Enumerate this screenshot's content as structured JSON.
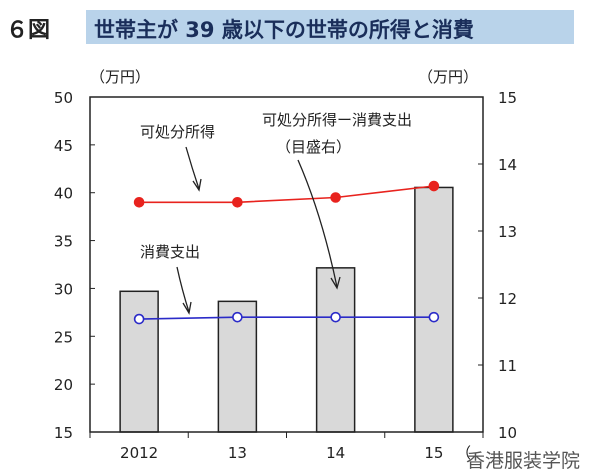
{
  "figure": {
    "number": "６図",
    "title": "世帯主が 39 歳以下の世帯の所得と消費",
    "watermark": "香港服装学院"
  },
  "chart_data": {
    "type": "bar",
    "categories": [
      "2012",
      "13",
      "14",
      "15"
    ],
    "y_left": {
      "unit": "（万円）",
      "ylim": [
        15,
        50
      ],
      "ticks": [
        15,
        20,
        25,
        30,
        35,
        40,
        45,
        50
      ]
    },
    "y_right": {
      "unit": "（万円）",
      "ylim": [
        10,
        15
      ],
      "ticks": [
        10,
        11,
        12,
        13,
        14,
        15
      ]
    },
    "x_unit_partial": "（",
    "bars": {
      "name": "可処分所得－消費支出",
      "axis": "right",
      "values": [
        12.1,
        11.95,
        12.45,
        13.65
      ],
      "color": "#d9d9d9"
    },
    "lines": [
      {
        "name": "可処分所得",
        "axis": "left",
        "values": [
          39.0,
          39.0,
          39.5,
          40.7
        ],
        "color": "#e8231e",
        "filled": true
      },
      {
        "name": "消費支出",
        "axis": "left",
        "values": [
          26.8,
          27.0,
          27.0,
          27.0
        ],
        "color": "#2b2bc8",
        "filled": false
      }
    ],
    "annotations": {
      "income": "可処分所得",
      "diff": "可処分所得ー消費支出",
      "diff_sub": "（目盛右）",
      "spend": "消費支出"
    },
    "grid": false
  }
}
